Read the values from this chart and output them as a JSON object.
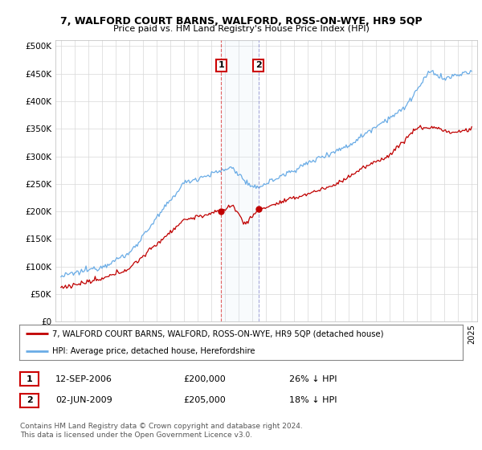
{
  "title": "7, WALFORD COURT BARNS, WALFORD, ROSS-ON-WYE, HR9 5QP",
  "subtitle": "Price paid vs. HM Land Registry's House Price Index (HPI)",
  "ylabel_ticks": [
    "£0",
    "£50K",
    "£100K",
    "£150K",
    "£200K",
    "£250K",
    "£300K",
    "£350K",
    "£400K",
    "£450K",
    "£500K"
  ],
  "ytick_values": [
    0,
    50000,
    100000,
    150000,
    200000,
    250000,
    300000,
    350000,
    400000,
    450000,
    500000
  ],
  "ylim": [
    0,
    510000
  ],
  "xlim": [
    1994.6,
    2025.4
  ],
  "sale1_x": 2006.71,
  "sale1_y": 200000,
  "sale2_x": 2009.42,
  "sale2_y": 205000,
  "hpi_color": "#6aace6",
  "price_color": "#c00000",
  "shade_color": "#d0e8f8",
  "vline_color": "#e05050",
  "legend_label1": "7, WALFORD COURT BARNS, WALFORD, ROSS-ON-WYE, HR9 5QP (detached house)",
  "legend_label2": "HPI: Average price, detached house, Herefordshire",
  "table_row1": [
    "1",
    "12-SEP-2006",
    "£200,000",
    "26% ↓ HPI"
  ],
  "table_row2": [
    "2",
    "02-JUN-2009",
    "£205,000",
    "18% ↓ HPI"
  ],
  "footnote": "Contains HM Land Registry data © Crown copyright and database right 2024.\nThis data is licensed under the Open Government Licence v3.0.",
  "bg_color": "#ffffff",
  "grid_color": "#d8d8d8"
}
